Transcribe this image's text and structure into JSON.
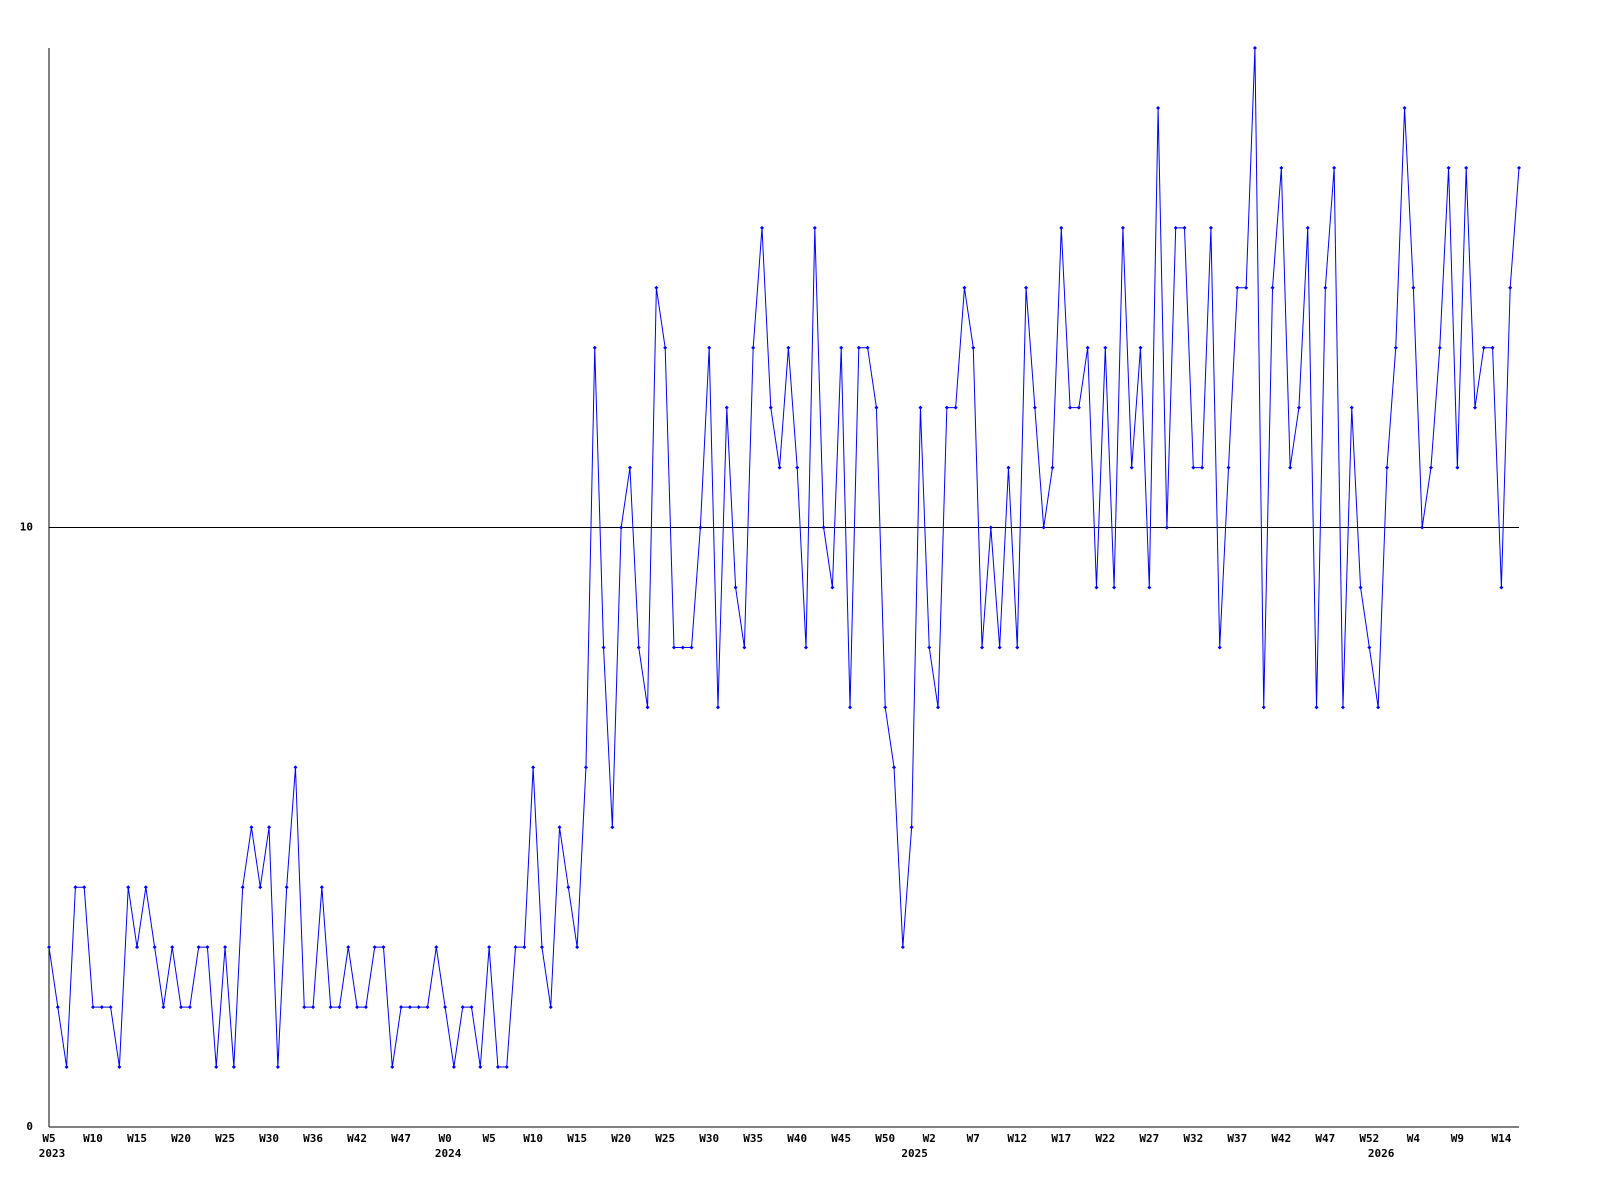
{
  "chart_data": {
    "type": "line",
    "categories": [
      "W5",
      null,
      null,
      null,
      null,
      "W10",
      null,
      null,
      null,
      null,
      "W15",
      null,
      null,
      null,
      null,
      "W20",
      null,
      null,
      null,
      null,
      "W25",
      null,
      null,
      null,
      null,
      "W30",
      null,
      null,
      null,
      null,
      "W36",
      null,
      null,
      null,
      null,
      "W42",
      null,
      null,
      null,
      null,
      "W47",
      null,
      null,
      null,
      null,
      "W0",
      null,
      null,
      null,
      null,
      "W5",
      null,
      null,
      null,
      null,
      "W10",
      null,
      null,
      null,
      null,
      "W15",
      null,
      null,
      null,
      null,
      "W20",
      null,
      null,
      null,
      null,
      "W25",
      null,
      null,
      null,
      null,
      "W30",
      null,
      null,
      null,
      null,
      "W35",
      null,
      null,
      null,
      null,
      "W40",
      null,
      null,
      null,
      null,
      "W45",
      null,
      null,
      null,
      null,
      "W50",
      null,
      null,
      null,
      null,
      "W2",
      null,
      null,
      null,
      null,
      "W7",
      null,
      null,
      null,
      null,
      "W12",
      null,
      null,
      null,
      null,
      "W17",
      null,
      null,
      null,
      null,
      "W22",
      null,
      null,
      null,
      null,
      "W27",
      null,
      null,
      null,
      null,
      "W32",
      null,
      null,
      null,
      null,
      "W37",
      null,
      null,
      null,
      null,
      "W42",
      null,
      null,
      null,
      null,
      "W47",
      null,
      null,
      null,
      null,
      "W52",
      null,
      null,
      null,
      null,
      "W4",
      null,
      null,
      null,
      null,
      "W9",
      null,
      null,
      null,
      null,
      "W14",
      null,
      null
    ],
    "category_years": [
      "2023",
      null,
      null,
      null,
      null,
      null,
      null,
      null,
      null,
      null,
      null,
      null,
      null,
      null,
      null,
      null,
      null,
      null,
      null,
      null,
      null,
      null,
      null,
      null,
      null,
      null,
      null,
      null,
      null,
      null,
      null,
      null,
      null,
      null,
      null,
      null,
      null,
      null,
      null,
      null,
      null,
      null,
      null,
      null,
      null,
      "2024",
      null,
      null,
      null,
      null,
      null,
      null,
      null,
      null,
      null,
      null,
      null,
      null,
      null,
      null,
      null,
      null,
      null,
      null,
      null,
      null,
      null,
      null,
      null,
      null,
      null,
      null,
      null,
      null,
      null,
      null,
      null,
      null,
      null,
      null,
      null,
      null,
      null,
      null,
      null,
      null,
      null,
      null,
      null,
      null,
      null,
      null,
      null,
      null,
      null,
      null,
      null,
      null,
      "2025",
      null,
      null,
      null,
      null,
      null,
      null,
      null,
      null,
      null,
      null,
      null,
      null,
      null,
      null,
      null,
      null,
      null,
      null,
      null,
      null,
      null,
      null,
      null,
      null,
      null,
      null,
      null,
      null,
      null,
      null,
      null,
      null,
      null,
      null,
      null,
      null,
      null,
      null,
      null,
      null,
      null,
      null,
      null,
      null,
      null,
      null,
      null,
      null,
      null,
      null,
      null,
      null,
      "2026",
      null,
      null,
      null,
      null,
      null,
      null,
      null,
      null,
      null,
      null,
      null,
      null,
      null,
      null,
      null,
      null
    ],
    "series": [
      {
        "color": "#0000ff",
        "values": [
          3,
          2,
          1,
          4,
          4,
          2,
          2,
          2,
          1,
          4,
          3,
          4,
          3,
          2,
          3,
          2,
          2,
          3,
          3,
          1,
          3,
          1,
          4,
          5,
          4,
          5,
          1,
          4,
          6,
          2,
          2,
          4,
          2,
          2,
          3,
          2,
          2,
          3,
          3,
          1,
          2,
          2,
          2,
          2,
          3,
          2,
          1,
          2,
          2,
          1,
          3,
          1,
          1,
          3,
          3,
          6,
          3,
          2,
          5,
          4,
          3,
          6,
          13,
          8,
          5,
          10,
          11,
          8,
          7,
          14,
          13,
          8,
          8,
          8,
          10,
          13,
          7,
          12,
          9,
          8,
          13,
          15,
          12,
          11,
          13,
          11,
          8,
          15,
          10,
          9,
          13,
          7,
          13,
          13,
          12,
          7,
          6,
          3,
          5,
          12,
          8,
          7,
          12,
          12,
          14,
          13,
          8,
          10,
          8,
          11,
          8,
          14,
          12,
          10,
          11,
          15,
          12,
          12,
          13,
          9,
          13,
          9,
          15,
          11,
          13,
          9,
          17,
          10,
          15,
          15,
          11,
          11,
          15,
          8,
          11,
          14,
          14,
          18,
          7,
          14,
          16,
          11,
          12,
          15,
          7,
          14,
          16,
          7,
          12,
          9,
          8,
          7,
          11,
          13,
          17,
          14,
          10,
          11,
          13,
          16,
          11,
          16,
          12,
          13,
          13,
          9,
          14,
          16
        ]
      }
    ],
    "ylim": [
      0,
      18
    ],
    "yticks": [
      0,
      10
    ],
    "grid": true
  }
}
